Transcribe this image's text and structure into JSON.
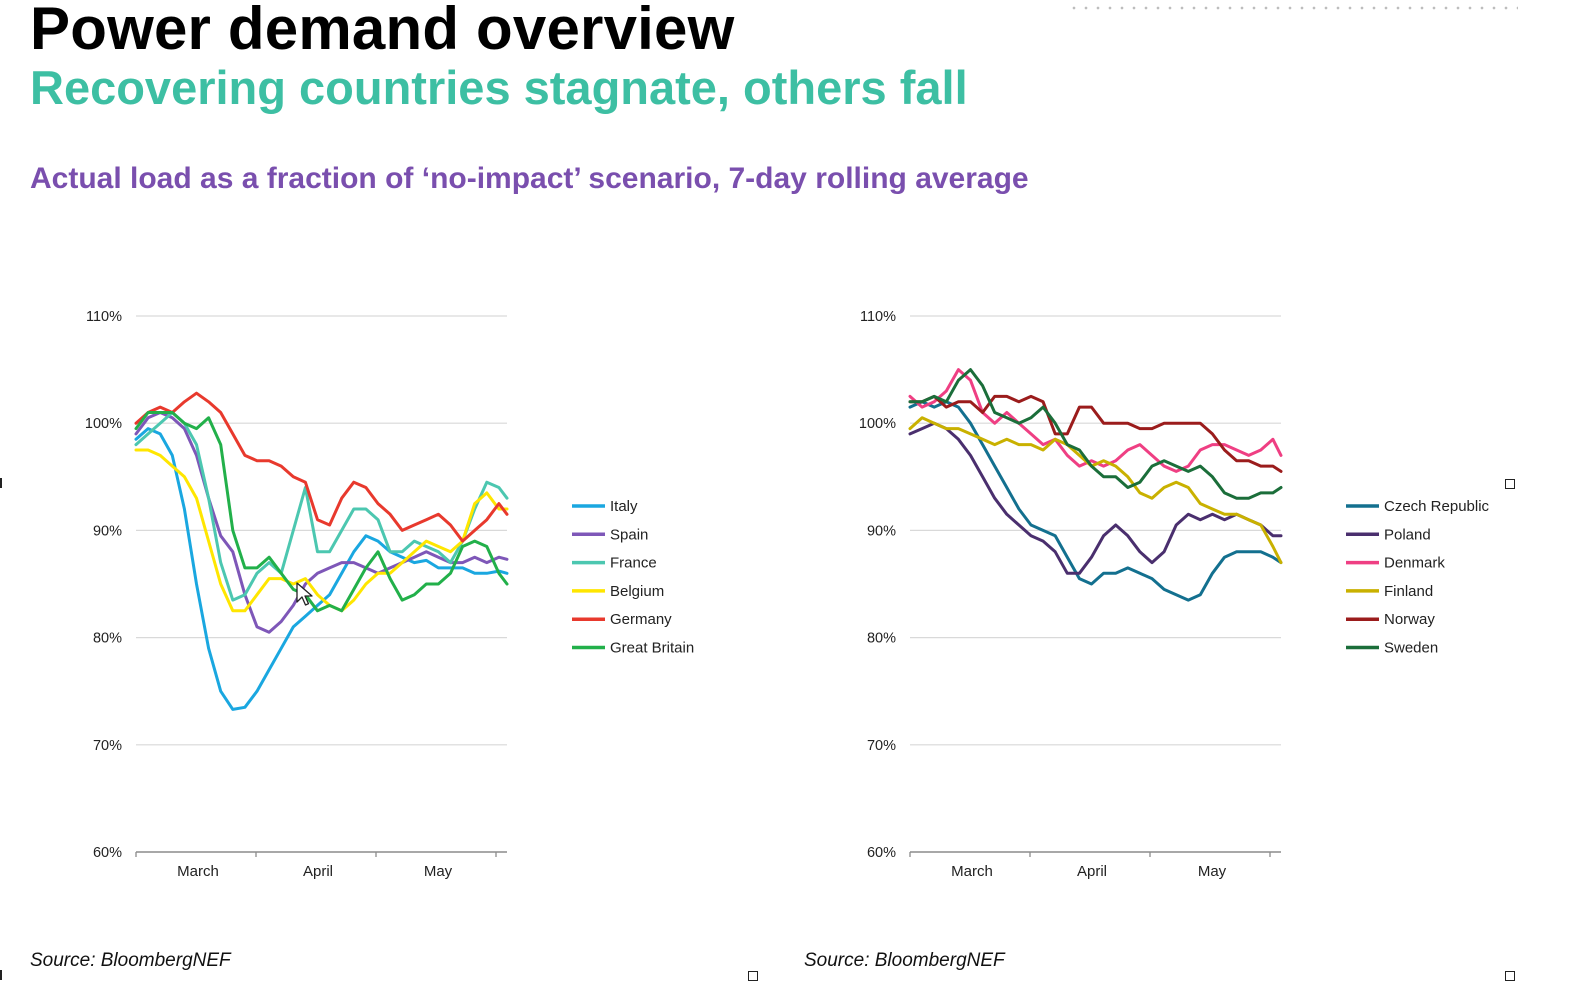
{
  "header": {
    "title": "Power demand overview",
    "subtitle": "Recovering countries stagnate, others fall",
    "chart_heading": "Actual load as a fraction of ‘no-impact’ scenario, 7-day rolling average"
  },
  "left_source": "Source: BloombergNEF",
  "right_source": "Source: BloombergNEF",
  "colors": {
    "title": "#000000",
    "subtitle": "#3dbfa3",
    "heading": "#7a4fae",
    "grid": "#d9d9d9",
    "axis": "#8c8c8c"
  },
  "chart_data": [
    {
      "type": "line",
      "ylim": [
        60,
        110
      ],
      "yticks": [
        "60%",
        "70%",
        "80%",
        "90%",
        "100%",
        "110%"
      ],
      "xlim": [
        0,
        92
      ],
      "month_labels": [
        "March",
        "April",
        "May"
      ],
      "legend": "right",
      "grid": true,
      "series": [
        {
          "name": "Italy",
          "color": "#1aa7e0",
          "x": [
            0,
            3,
            6,
            9,
            12,
            15,
            18,
            21,
            24,
            27,
            30,
            33,
            36,
            39,
            42,
            45,
            48,
            51,
            54,
            57,
            60,
            63,
            66,
            69,
            72,
            75,
            78,
            81,
            84,
            87,
            90,
            92
          ],
          "y": [
            98.5,
            99.5,
            99,
            97,
            92,
            85,
            79,
            75,
            73.3,
            73.5,
            75,
            77,
            79,
            81,
            82,
            83,
            84,
            86,
            88,
            89.5,
            89,
            88,
            87.5,
            87,
            87.2,
            86.5,
            86.5,
            86.5,
            86,
            86,
            86.2,
            86
          ]
        },
        {
          "name": "Spain",
          "color": "#7e57b8",
          "x": [
            0,
            3,
            6,
            9,
            12,
            15,
            18,
            21,
            24,
            27,
            30,
            33,
            36,
            39,
            42,
            45,
            48,
            51,
            54,
            57,
            60,
            63,
            66,
            69,
            72,
            75,
            78,
            81,
            84,
            87,
            90,
            92
          ],
          "y": [
            99,
            100.5,
            101,
            100.5,
            99.5,
            97,
            93,
            89.5,
            88,
            84,
            81,
            80.5,
            81.5,
            83,
            85,
            86,
            86.5,
            87,
            87,
            86.5,
            86,
            86.5,
            87,
            87.5,
            88,
            87.5,
            87,
            87,
            87.5,
            87,
            87.5,
            87.3
          ]
        },
        {
          "name": "France",
          "color": "#4cc7b0",
          "x": [
            0,
            3,
            6,
            9,
            12,
            15,
            18,
            21,
            24,
            27,
            30,
            33,
            36,
            39,
            42,
            45,
            48,
            51,
            54,
            57,
            60,
            63,
            66,
            69,
            72,
            75,
            78,
            81,
            84,
            87,
            90,
            92
          ],
          "y": [
            98,
            99,
            100,
            101,
            100,
            98,
            93,
            87,
            83.5,
            84,
            86,
            87,
            86,
            90,
            94,
            88,
            88,
            90,
            92,
            92,
            91,
            88,
            88,
            89,
            88.5,
            88,
            87,
            89,
            92,
            94.5,
            94,
            93
          ]
        },
        {
          "name": "Belgium",
          "color": "#ffe600",
          "x": [
            0,
            3,
            6,
            9,
            12,
            15,
            18,
            21,
            24,
            27,
            30,
            33,
            36,
            39,
            42,
            45,
            48,
            51,
            54,
            57,
            60,
            63,
            66,
            69,
            72,
            75,
            78,
            81,
            84,
            87,
            90,
            92
          ],
          "y": [
            97.5,
            97.5,
            97,
            96,
            95,
            93,
            89,
            85,
            82.5,
            82.5,
            84,
            85.5,
            85.5,
            85,
            85.5,
            84,
            83,
            82.5,
            83.5,
            85,
            86,
            86,
            87,
            88,
            89,
            88.5,
            88,
            89,
            92.5,
            93.5,
            92,
            92
          ]
        },
        {
          "name": "Germany",
          "color": "#e8392d",
          "x": [
            0,
            3,
            6,
            9,
            12,
            15,
            18,
            21,
            24,
            27,
            30,
            33,
            36,
            39,
            42,
            45,
            48,
            51,
            54,
            57,
            60,
            63,
            66,
            69,
            72,
            75,
            78,
            81,
            84,
            87,
            90,
            92
          ],
          "y": [
            100,
            101,
            101.5,
            101,
            102,
            102.8,
            102,
            101,
            99,
            97,
            96.5,
            96.5,
            96,
            95,
            94.5,
            91,
            90.5,
            93,
            94.5,
            94,
            92.5,
            91.5,
            90,
            90.5,
            91,
            91.5,
            90.5,
            89,
            90,
            91,
            92.5,
            91.5
          ]
        },
        {
          "name": "Great Britain",
          "color": "#22b04a",
          "x": [
            0,
            3,
            6,
            9,
            12,
            15,
            18,
            21,
            24,
            27,
            30,
            33,
            36,
            39,
            42,
            45,
            48,
            51,
            54,
            57,
            60,
            63,
            66,
            69,
            72,
            75,
            78,
            81,
            84,
            87,
            90,
            92
          ],
          "y": [
            99.5,
            101,
            101,
            101,
            100,
            99.5,
            100.5,
            98,
            90,
            86.5,
            86.5,
            87.5,
            86,
            84.5,
            84,
            82.5,
            83,
            82.5,
            84.5,
            86.5,
            88,
            85.5,
            83.5,
            84,
            85,
            85,
            86,
            88.5,
            89,
            88.5,
            86,
            85
          ]
        }
      ]
    },
    {
      "type": "line",
      "ylim": [
        60,
        110
      ],
      "yticks": [
        "60%",
        "70%",
        "80%",
        "90%",
        "100%",
        "110%"
      ],
      "xlim": [
        0,
        92
      ],
      "month_labels": [
        "March",
        "April",
        "May"
      ],
      "legend": "right",
      "grid": true,
      "series": [
        {
          "name": "Czech Republic",
          "color": "#13708f",
          "x": [
            0,
            3,
            6,
            9,
            12,
            15,
            18,
            21,
            24,
            27,
            30,
            33,
            36,
            39,
            42,
            45,
            48,
            51,
            54,
            57,
            60,
            63,
            66,
            69,
            72,
            75,
            78,
            81,
            84,
            87,
            90,
            92
          ],
          "y": [
            101.5,
            102,
            101.5,
            102,
            101.5,
            100,
            98,
            96,
            94,
            92,
            90.5,
            90,
            89.5,
            87.5,
            85.5,
            85,
            86,
            86,
            86.5,
            86,
            85.5,
            84.5,
            84,
            83.5,
            84,
            86,
            87.5,
            88,
            88,
            88,
            87.5,
            87
          ]
        },
        {
          "name": "Poland",
          "color": "#4a2f6e",
          "x": [
            0,
            3,
            6,
            9,
            12,
            15,
            18,
            21,
            24,
            27,
            30,
            33,
            36,
            39,
            42,
            45,
            48,
            51,
            54,
            57,
            60,
            63,
            66,
            69,
            72,
            75,
            78,
            81,
            84,
            87,
            90,
            92
          ],
          "y": [
            99,
            99.5,
            100,
            99.5,
            98.5,
            97,
            95,
            93,
            91.5,
            90.5,
            89.5,
            89,
            88,
            86,
            86,
            87.5,
            89.5,
            90.5,
            89.5,
            88,
            87,
            88,
            90.5,
            91.5,
            91,
            91.5,
            91,
            91.5,
            91,
            90.5,
            89.5,
            89.5
          ]
        },
        {
          "name": "Denmark",
          "color": "#ef3f83",
          "x": [
            0,
            3,
            6,
            9,
            12,
            15,
            18,
            21,
            24,
            27,
            30,
            33,
            36,
            39,
            42,
            45,
            48,
            51,
            54,
            57,
            60,
            63,
            66,
            69,
            72,
            75,
            78,
            81,
            84,
            87,
            90,
            92
          ],
          "y": [
            102.5,
            101.5,
            102,
            103,
            105,
            104,
            101,
            100,
            101,
            100,
            99,
            98,
            98.5,
            97,
            96,
            96.5,
            96,
            96.5,
            97.5,
            98,
            97,
            96,
            95.5,
            96,
            97.5,
            98,
            98,
            97.5,
            97,
            97.5,
            98.5,
            97
          ]
        },
        {
          "name": "Finland",
          "color": "#c9b100",
          "x": [
            0,
            3,
            6,
            9,
            12,
            15,
            18,
            21,
            24,
            27,
            30,
            33,
            36,
            39,
            42,
            45,
            48,
            51,
            54,
            57,
            60,
            63,
            66,
            69,
            72,
            75,
            78,
            81,
            84,
            87,
            90,
            92
          ],
          "y": [
            99.5,
            100.5,
            100,
            99.5,
            99.5,
            99,
            98.5,
            98,
            98.5,
            98,
            98,
            97.5,
            98.5,
            98,
            97,
            96,
            96.5,
            96,
            95,
            93.5,
            93,
            94,
            94.5,
            94,
            92.5,
            92,
            91.5,
            91.5,
            91,
            90.5,
            88.5,
            87
          ]
        },
        {
          "name": "Norway",
          "color": "#9b1c1c",
          "x": [
            0,
            3,
            6,
            9,
            12,
            15,
            18,
            21,
            24,
            27,
            30,
            33,
            36,
            39,
            42,
            45,
            48,
            51,
            54,
            57,
            60,
            63,
            66,
            69,
            72,
            75,
            78,
            81,
            84,
            87,
            90,
            92
          ],
          "y": [
            102,
            102,
            102.5,
            101.5,
            102,
            102,
            101,
            102.5,
            102.5,
            102,
            102.5,
            102,
            99,
            99,
            101.5,
            101.5,
            100,
            100,
            100,
            99.5,
            99.5,
            100,
            100,
            100,
            100,
            99,
            97.5,
            96.5,
            96.5,
            96,
            96,
            95.5
          ]
        },
        {
          "name": "Sweden",
          "color": "#1b6e3a",
          "x": [
            0,
            3,
            6,
            9,
            12,
            15,
            18,
            21,
            24,
            27,
            30,
            33,
            36,
            39,
            42,
            45,
            48,
            51,
            54,
            57,
            60,
            63,
            66,
            69,
            72,
            75,
            78,
            81,
            84,
            87,
            90,
            92
          ],
          "y": [
            102,
            102,
            102.5,
            102,
            104,
            105,
            103.5,
            101,
            100.5,
            100,
            100.5,
            101.5,
            100,
            98,
            97.5,
            96,
            95,
            95,
            94,
            94.5,
            96,
            96.5,
            96,
            95.5,
            96,
            95,
            93.5,
            93,
            93,
            93.5,
            93.5,
            94
          ]
        }
      ]
    }
  ]
}
